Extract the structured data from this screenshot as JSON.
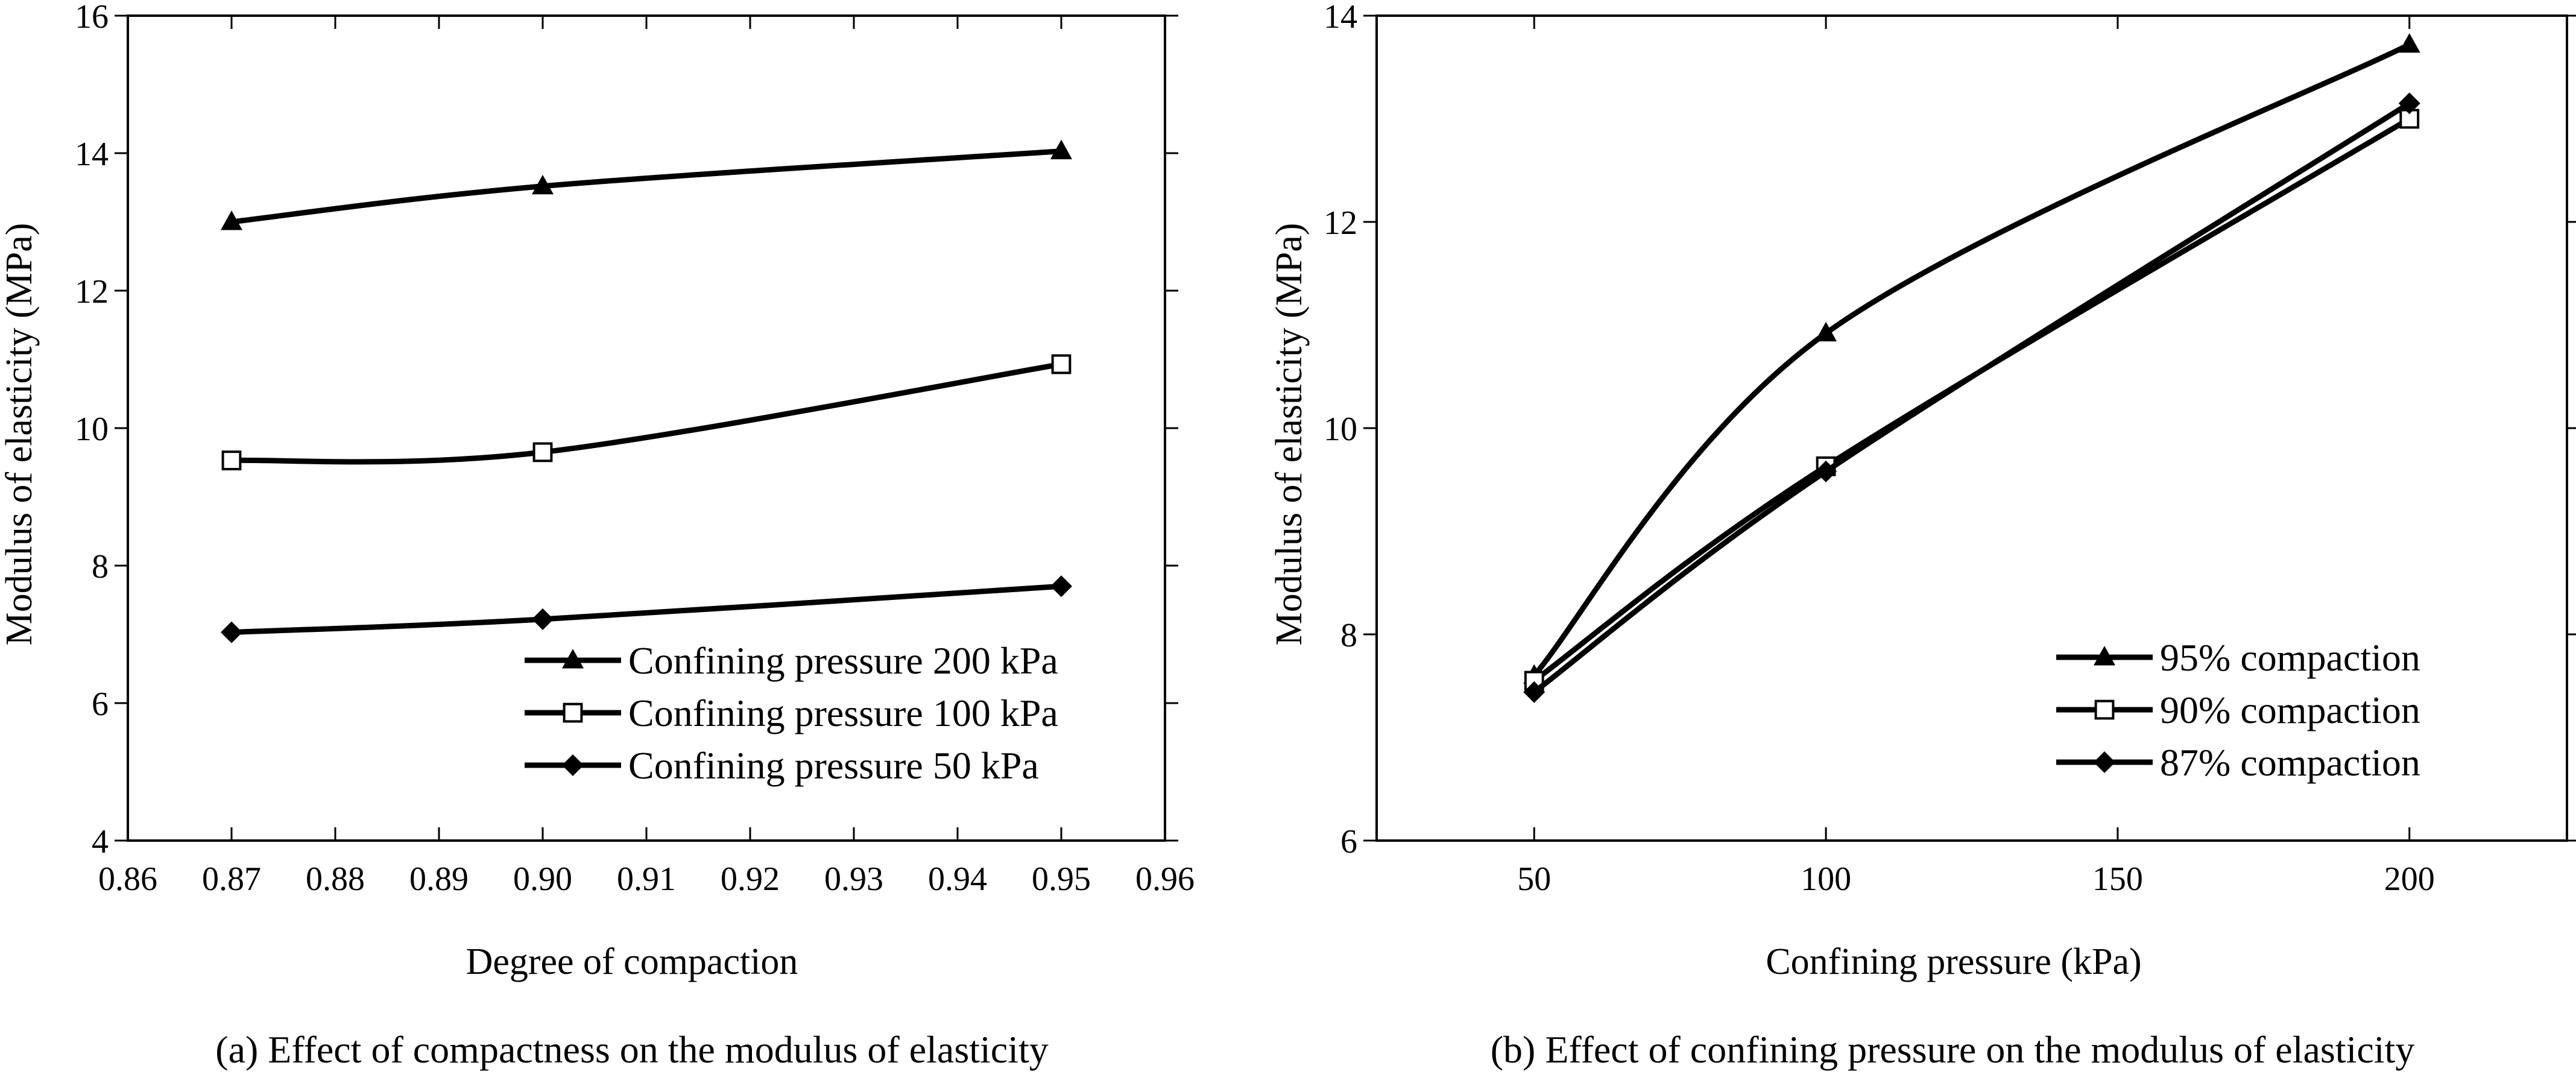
{
  "chart_data": [
    {
      "type": "line",
      "caption": "(a) Effect of compactness on the modulus of elasticity",
      "xlabel": "Degree of compaction",
      "ylabel": "Modulus of elasticity (MPa)",
      "xlim": [
        0.86,
        0.96
      ],
      "ylim": [
        4,
        16
      ],
      "xticks": [
        "0.86",
        "0.87",
        "0.88",
        "0.89",
        "0.90",
        "0.91",
        "0.92",
        "0.93",
        "0.94",
        "0.95",
        "0.96"
      ],
      "yticks": [
        "4",
        "6",
        "8",
        "10",
        "12",
        "14",
        "16"
      ],
      "grid": false,
      "legend_position": "bottom-right",
      "x": [
        0.87,
        0.9,
        0.95
      ],
      "series": [
        {
          "name": "Confining pressure 200 kPa",
          "marker": "triangle",
          "values": [
            13.0,
            13.52,
            14.03
          ]
        },
        {
          "name": "Confining pressure 100 kPa",
          "marker": "square-open",
          "values": [
            9.53,
            9.65,
            10.93
          ]
        },
        {
          "name": "Confining pressure 50 kPa",
          "marker": "diamond",
          "values": [
            7.03,
            7.22,
            7.7
          ]
        }
      ]
    },
    {
      "type": "line",
      "caption": "(b) Effect of confining pressure on the modulus of elasticity",
      "xlabel": "Confining pressure (kPa)",
      "ylabel": "Modulus of elasticity (MPa)",
      "xlim": [
        23,
        227
      ],
      "ylim": [
        6,
        14
      ],
      "xticks": [
        "50",
        "100",
        "150",
        "200"
      ],
      "yticks": [
        "6",
        "8",
        "10",
        "12",
        "14"
      ],
      "grid": false,
      "legend_position": "bottom-right",
      "x": [
        50,
        100,
        200
      ],
      "series": [
        {
          "name": "95% compaction",
          "marker": "triangle",
          "values": [
            7.6,
            10.92,
            13.72
          ]
        },
        {
          "name": "90% compaction",
          "marker": "square-open",
          "values": [
            7.55,
            9.63,
            13.0
          ]
        },
        {
          "name": "87% compaction",
          "marker": "diamond",
          "values": [
            7.44,
            9.58,
            13.15
          ]
        }
      ]
    }
  ]
}
